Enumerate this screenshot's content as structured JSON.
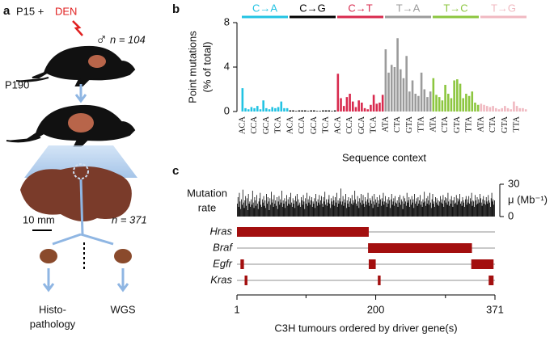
{
  "diagram": {
    "label": "a",
    "start": "P15 + ",
    "agent": "DEN",
    "sex": "♂",
    "n1": "n = 104",
    "time": "P190",
    "scale": "10 mm",
    "n2": "n = 371",
    "outcome_1": [
      "Histo-",
      "pathology"
    ],
    "outcome_2": "WGS"
  },
  "chart_data": [
    {
      "type": "bar",
      "label": "b",
      "ylabel": [
        "Point mutations",
        "(% of total)"
      ],
      "xlabel": "Sequence context",
      "ylim": [
        0,
        8
      ],
      "yticks": [
        0,
        4,
        8
      ],
      "categories": [
        "ACA",
        null,
        null,
        null,
        "CCA",
        null,
        null,
        null,
        "GCA",
        null,
        null,
        null,
        "TCA",
        null,
        null,
        null,
        "ACA",
        null,
        null,
        null,
        "CCA",
        null,
        null,
        null,
        "GCA",
        null,
        null,
        null,
        "TCA",
        null,
        null,
        null,
        "ACA",
        null,
        null,
        null,
        "CCA",
        null,
        null,
        null,
        "GCA",
        null,
        null,
        null,
        "TCA",
        null,
        null,
        null,
        "ATA",
        null,
        null,
        null,
        "CTA",
        null,
        null,
        null,
        "GTA",
        null,
        null,
        null,
        "TTA",
        null,
        null,
        null,
        "ATA",
        null,
        null,
        null,
        "CTA",
        null,
        null,
        null,
        "GTA",
        null,
        null,
        null,
        "TTA",
        null,
        null,
        null,
        "ATA",
        null,
        null,
        null,
        "CTA",
        null,
        null,
        null,
        "GTA",
        null,
        null,
        null,
        "TTA",
        null,
        null,
        null
      ],
      "groups": [
        {
          "name": "C→A",
          "color": "#22c3e3",
          "values": [
            2.1,
            0.3,
            0.2,
            0.4,
            0.3,
            0.5,
            0.2,
            1.0,
            0.3,
            0.2,
            0.4,
            0.3,
            0.4,
            0.9,
            0.3,
            0.3
          ]
        },
        {
          "name": "C→G",
          "color": "#000000",
          "values": [
            0.1,
            0.1,
            0.05,
            0.1,
            0.1,
            0.1,
            0.05,
            0.1,
            0.1,
            0.05,
            0.05,
            0.1,
            0.1,
            0.1,
            0.05,
            0.1
          ]
        },
        {
          "name": "C→T",
          "color": "#d82a4e",
          "values": [
            3.4,
            1.2,
            0.5,
            1.3,
            1.6,
            0.9,
            0.4,
            1.0,
            0.8,
            0.3,
            0.2,
            0.6,
            1.5,
            0.7,
            0.8,
            1.5
          ]
        },
        {
          "name": "T→A",
          "color": "#9b9b9b",
          "values": [
            5.6,
            3.5,
            4.2,
            4.0,
            6.6,
            3.8,
            3.0,
            5.0,
            1.8,
            2.8,
            1.6,
            1.4,
            3.5,
            2.0,
            1.3,
            1.8
          ]
        },
        {
          "name": "T→C",
          "color": "#8cc63f",
          "values": [
            3.0,
            1.5,
            1.3,
            1.0,
            2.4,
            1.6,
            1.2,
            2.8,
            2.9,
            2.5,
            1.2,
            1.6,
            1.4,
            1.8,
            0.8,
            0.6
          ]
        },
        {
          "name": "T→G",
          "color": "#f0b9c1",
          "values": [
            0.7,
            0.6,
            0.5,
            0.4,
            0.5,
            0.3,
            0.2,
            0.3,
            0.5,
            0.3,
            0.2,
            0.9,
            0.5,
            0.3,
            0.3,
            0.2
          ]
        }
      ]
    },
    {
      "type": "bar",
      "label": "c",
      "ylabel": [
        "Mutation",
        "rate"
      ],
      "y_axis_label": "μ (Mb⁻¹)",
      "y_axis_side": "right",
      "ylim": [
        0,
        30
      ],
      "yticks": [
        0,
        30
      ],
      "color": "#000000",
      "values": [
        12,
        18,
        9,
        22,
        14,
        7,
        16,
        11,
        25,
        13,
        8,
        15,
        19,
        10,
        17,
        6,
        21,
        12,
        14,
        9,
        16,
        11,
        24,
        13,
        8,
        18,
        15,
        10,
        20,
        12,
        7,
        14,
        17,
        22,
        11,
        9,
        16,
        13,
        19,
        10,
        15,
        8,
        21,
        12,
        18,
        14,
        6,
        17,
        11,
        23,
        13,
        16,
        9,
        20,
        12,
        15,
        10,
        18,
        7,
        14,
        19,
        11,
        16,
        13,
        24,
        9,
        15,
        12,
        17,
        8,
        14,
        20,
        10,
        16,
        12,
        18,
        11,
        22,
        13,
        9,
        17,
        12,
        15,
        8,
        19,
        14,
        21,
        10,
        16,
        11,
        13,
        9,
        18,
        15,
        11,
        20,
        14,
        7,
        17,
        12,
        22,
        10,
        16,
        13,
        19,
        11,
        15,
        18,
        9,
        14,
        12,
        17,
        8,
        21,
        14,
        10,
        16,
        13,
        20,
        11,
        15,
        19,
        12,
        9,
        18,
        14,
        23,
        11,
        16,
        10,
        13,
        16,
        20,
        12,
        8,
        17,
        14,
        11,
        19,
        15,
        10,
        18,
        13,
        22,
        9,
        15,
        12,
        17,
        14,
        26,
        11,
        14,
        19,
        10,
        16,
        13,
        21,
        8,
        15,
        12,
        18,
        9,
        14,
        17,
        12,
        20,
        11,
        15,
        13,
        24,
        16,
        12,
        10,
        19,
        14,
        8,
        17,
        13,
        21,
        11,
        15,
        20,
        12,
        9,
        18,
        14,
        11,
        16,
        22,
        13,
        10,
        17,
        15,
        12,
        19,
        8,
        14,
        21,
        11,
        16,
        13,
        18,
        9,
        15,
        12,
        20,
        16,
        10,
        17,
        14,
        22,
        11,
        14,
        19,
        13,
        9,
        16,
        12,
        18,
        15,
        8,
        16,
        21,
        11,
        14,
        17,
        10,
        19,
        13,
        12,
        15,
        9,
        18,
        13,
        20,
        11,
        16,
        14,
        7,
        19,
        12,
        17,
        14,
        10,
        22,
        13,
        15,
        18,
        9,
        16,
        11,
        19,
        13,
        16,
        8,
        21,
        12,
        14,
        17,
        10,
        18,
        12,
        15,
        20,
        11,
        14,
        9,
        16,
        13,
        23,
        14,
        10,
        17,
        12,
        19,
        15,
        11,
        22,
        13,
        8,
        16,
        21,
        12,
        14,
        9,
        18,
        13,
        17,
        11,
        15,
        10,
        14,
        19,
        13,
        16,
        12,
        20,
        9,
        15,
        18,
        13,
        17,
        11,
        22,
        14,
        10,
        16,
        12,
        19,
        15,
        9,
        15,
        18,
        12,
        13,
        20,
        11,
        17,
        14,
        16,
        21,
        12,
        14,
        10,
        18,
        15,
        13,
        9,
        16,
        19,
        11,
        16,
        13,
        19,
        12,
        17,
        14,
        22,
        10,
        15,
        14,
        9,
        20,
        15,
        11,
        18,
        12,
        16,
        13,
        21,
        17,
        13,
        10,
        16,
        19,
        12,
        15,
        11,
        18,
        14,
        12,
        20,
        15,
        13,
        9,
        17,
        22,
        14,
        16,
        11,
        15
      ]
    },
    {
      "type": "range",
      "xlabel": "C3H tumours ordered by driver gene(s)",
      "xlim": [
        1,
        371
      ],
      "xticks": [
        1,
        200,
        371
      ],
      "xminor": [
        100,
        300
      ],
      "color": "#a30f0f",
      "track_color": "#b5b5b5",
      "genes": [
        {
          "name": "Hras",
          "segments": [
            [
              1,
              190
            ]
          ]
        },
        {
          "name": "Braf",
          "segments": [
            [
              189,
              338
            ]
          ]
        },
        {
          "name": "Egfr",
          "segments": [
            [
              6,
              11
            ],
            [
              190,
              200
            ],
            [
              337,
              369
            ]
          ]
        },
        {
          "name": "Kras",
          "segments": [
            [
              12,
              16
            ],
            [
              203,
              207
            ],
            [
              362,
              369
            ]
          ]
        }
      ]
    }
  ]
}
